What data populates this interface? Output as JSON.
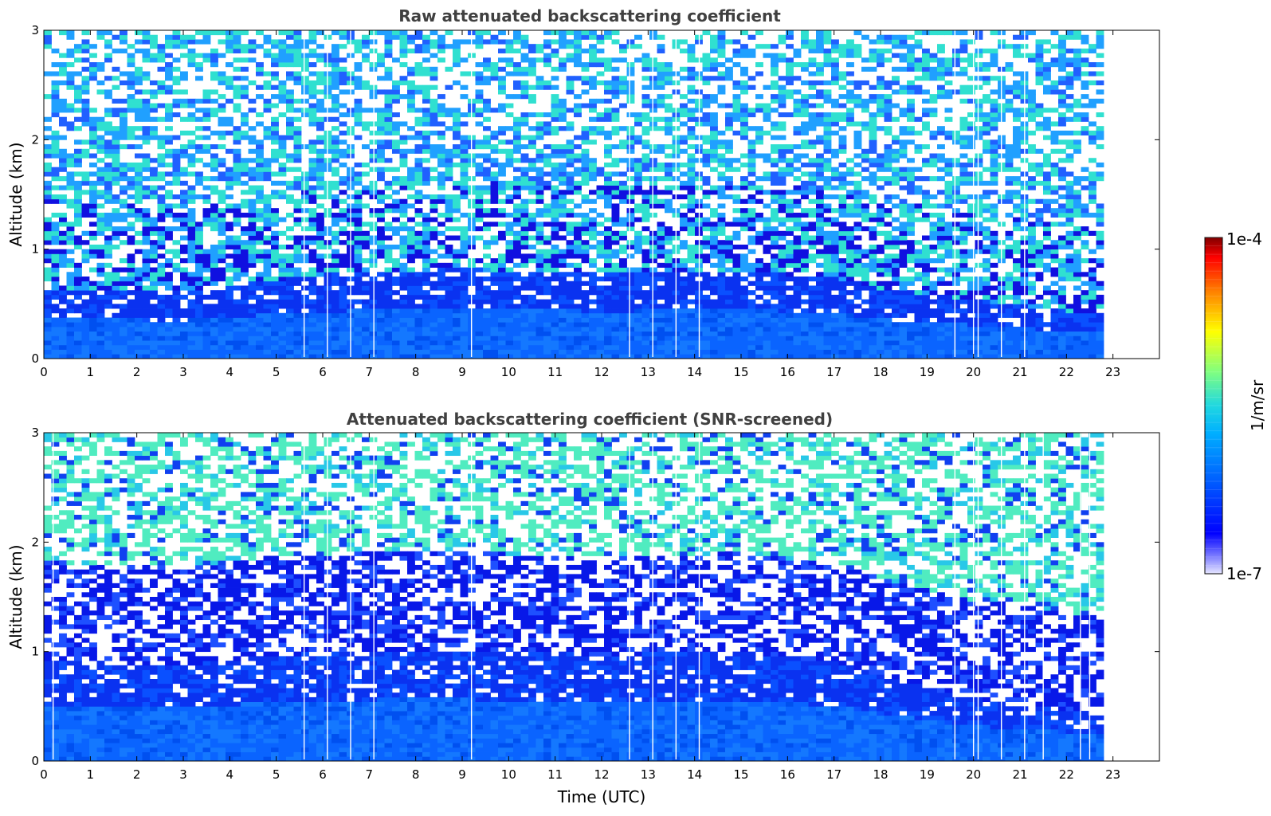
{
  "chart_data": [
    {
      "type": "heatmap",
      "title": "Raw attenuated backscattering coefficient",
      "xlabel": "",
      "ylabel": "Altitude (km)",
      "xlim": [
        0,
        24
      ],
      "ylim": [
        0,
        3
      ],
      "x_ticks": [
        "0",
        "1",
        "2",
        "3",
        "4",
        "5",
        "6",
        "7",
        "8",
        "9",
        "10",
        "11",
        "12",
        "13",
        "14",
        "15",
        "16",
        "17",
        "18",
        "19",
        "20",
        "21",
        "22",
        "23"
      ],
      "y_ticks": [
        "0",
        "1",
        "2",
        "3"
      ],
      "data_extent_hours": [
        0,
        22.8
      ],
      "boundary_layer_top_km": [
        {
          "t": 0,
          "z": 0.62
        },
        {
          "t": 3,
          "z": 0.6
        },
        {
          "t": 6,
          "z": 0.75
        },
        {
          "t": 9,
          "z": 0.8
        },
        {
          "t": 12,
          "z": 0.75
        },
        {
          "t": 15,
          "z": 0.78
        },
        {
          "t": 17,
          "z": 0.72
        },
        {
          "t": 18,
          "z": 0.62
        },
        {
          "t": 20,
          "z": 0.52
        },
        {
          "t": 22.8,
          "z": 0.38
        }
      ],
      "gap_times": [
        5.6,
        6.1,
        6.6,
        7.1,
        9.2,
        12.6,
        13.1,
        13.6,
        14.1,
        19.6,
        20.0,
        20.1,
        20.6,
        21.1
      ]
    },
    {
      "type": "heatmap",
      "title": "Attenuated backscattering coefficient (SNR-screened)",
      "xlabel": "Time (UTC)",
      "ylabel": "Altitude (km)",
      "xlim": [
        0,
        24
      ],
      "ylim": [
        0,
        3
      ],
      "x_ticks": [
        "0",
        "1",
        "2",
        "3",
        "4",
        "5",
        "6",
        "7",
        "8",
        "9",
        "10",
        "11",
        "12",
        "13",
        "14",
        "15",
        "16",
        "17",
        "18",
        "19",
        "20",
        "21",
        "22",
        "23"
      ],
      "y_ticks": [
        "0",
        "1",
        "2",
        "3"
      ],
      "data_extent_hours": [
        0,
        22.8
      ],
      "boundary_layer_top_km": [
        {
          "t": 0,
          "z": 0.9
        },
        {
          "t": 3,
          "z": 0.85
        },
        {
          "t": 5,
          "z": 0.95
        },
        {
          "t": 8,
          "z": 1.0
        },
        {
          "t": 12,
          "z": 0.95
        },
        {
          "t": 15,
          "z": 0.98
        },
        {
          "t": 17,
          "z": 0.88
        },
        {
          "t": 18,
          "z": 0.75
        },
        {
          "t": 20,
          "z": 0.55
        },
        {
          "t": 22.8,
          "z": 0.4
        }
      ],
      "gap_times": [
        0.2,
        5.6,
        6.1,
        6.6,
        7.1,
        9.2,
        12.6,
        13.1,
        13.6,
        14.1,
        19.6,
        20.0,
        20.1,
        20.6,
        21.1,
        21.5,
        22.3,
        22.5
      ]
    }
  ],
  "colorbar": {
    "label": "1/m/sr",
    "max_label": "1e-4",
    "min_label": "1e-7",
    "scale": "log",
    "colors": [
      "#e6e6ff",
      "#0000ff",
      "#0080ff",
      "#00c8ff",
      "#40e0d0",
      "#80ff80",
      "#ffff00",
      "#ff8000",
      "#ff0000",
      "#800000"
    ]
  }
}
